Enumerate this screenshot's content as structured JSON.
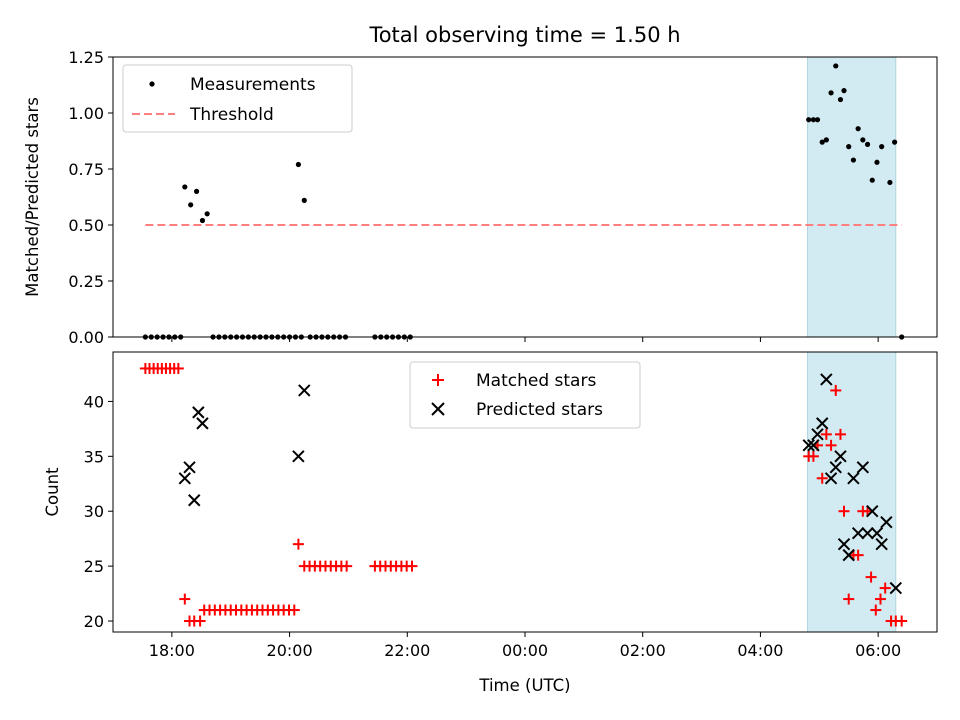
{
  "chart_data": [
    {
      "type": "scatter",
      "title": "Total observing time = 1.50 h",
      "xlabel": "",
      "ylabel": "Matched/Predicted stars",
      "x_unit": "hours since 00:00 UTC",
      "xlim": [
        -7.0,
        7.0
      ],
      "ylim": [
        0.0,
        1.25
      ],
      "yticks": [
        "0.00",
        "0.25",
        "0.50",
        "0.75",
        "1.00",
        "1.25"
      ],
      "xticks": [
        "18:00",
        "20:00",
        "22:00",
        "00:00",
        "02:00",
        "04:00",
        "06:00"
      ],
      "xtick_values": [
        -6,
        -4,
        -2,
        0,
        2,
        4,
        6
      ],
      "highlight_span": [
        4.8,
        6.3
      ],
      "legend_position": "upper left",
      "series": [
        {
          "name": "Measurements",
          "kind": "points",
          "color": "#000000",
          "points": [
            [
              -6.45,
              0
            ],
            [
              -6.35,
              0
            ],
            [
              -6.25,
              0
            ],
            [
              -6.15,
              0
            ],
            [
              -6.05,
              0
            ],
            [
              -5.95,
              0
            ],
            [
              -5.85,
              0
            ],
            [
              -5.78,
              0.67
            ],
            [
              -5.68,
              0.59
            ],
            [
              -5.58,
              0.65
            ],
            [
              -5.48,
              0.52
            ],
            [
              -5.4,
              0.55
            ],
            [
              -5.3,
              0
            ],
            [
              -5.2,
              0
            ],
            [
              -5.1,
              0
            ],
            [
              -5.0,
              0
            ],
            [
              -4.9,
              0
            ],
            [
              -4.8,
              0
            ],
            [
              -4.7,
              0
            ],
            [
              -4.6,
              0
            ],
            [
              -4.5,
              0
            ],
            [
              -4.4,
              0
            ],
            [
              -4.3,
              0
            ],
            [
              -4.2,
              0
            ],
            [
              -4.1,
              0
            ],
            [
              -4.0,
              0
            ],
            [
              -3.9,
              0
            ],
            [
              -3.8,
              0
            ],
            [
              -3.85,
              0.77
            ],
            [
              -3.75,
              0.61
            ],
            [
              -3.65,
              0
            ],
            [
              -3.55,
              0
            ],
            [
              -3.45,
              0
            ],
            [
              -3.35,
              0
            ],
            [
              -3.25,
              0
            ],
            [
              -3.15,
              0
            ],
            [
              -3.05,
              0
            ],
            [
              -2.55,
              0
            ],
            [
              -2.45,
              0
            ],
            [
              -2.35,
              0
            ],
            [
              -2.25,
              0
            ],
            [
              -2.15,
              0
            ],
            [
              -2.05,
              0
            ],
            [
              -1.95,
              0
            ],
            [
              4.82,
              0.97
            ],
            [
              4.9,
              0.97
            ],
            [
              4.97,
              0.97
            ],
            [
              5.05,
              0.87
            ],
            [
              5.12,
              0.88
            ],
            [
              5.2,
              1.09
            ],
            [
              5.28,
              1.21
            ],
            [
              5.36,
              1.06
            ],
            [
              5.42,
              1.1
            ],
            [
              5.5,
              0.85
            ],
            [
              5.58,
              0.79
            ],
            [
              5.66,
              0.93
            ],
            [
              5.74,
              0.88
            ],
            [
              5.82,
              0.86
            ],
            [
              5.9,
              0.7
            ],
            [
              5.98,
              0.78
            ],
            [
              6.06,
              0.85
            ],
            [
              6.2,
              0.69
            ],
            [
              6.28,
              0.87
            ],
            [
              6.4,
              0
            ]
          ]
        },
        {
          "name": "Threshold",
          "kind": "dashed-line",
          "color": "#ff7f7f",
          "x": [
            -6.45,
            6.4
          ],
          "y": [
            0.5,
            0.5
          ]
        }
      ]
    },
    {
      "type": "scatter",
      "title": "",
      "xlabel": "Time (UTC)",
      "ylabel": "Count",
      "x_unit": "hours since 00:00 UTC",
      "xlim": [
        -7.0,
        7.0
      ],
      "ylim": [
        19.0,
        44.5
      ],
      "yticks": [
        "20",
        "25",
        "30",
        "35",
        "40"
      ],
      "xticks": [
        "18:00",
        "20:00",
        "22:00",
        "00:00",
        "02:00",
        "04:00",
        "06:00"
      ],
      "xtick_values": [
        -6,
        -4,
        -2,
        0,
        2,
        4,
        6
      ],
      "highlight_span": [
        4.8,
        6.3
      ],
      "legend_position": "upper center",
      "series": [
        {
          "name": "Matched stars",
          "marker": "plus",
          "color": "#ff0000",
          "points": [
            [
              -6.45,
              43
            ],
            [
              -6.38,
              43
            ],
            [
              -6.31,
              43
            ],
            [
              -6.24,
              43
            ],
            [
              -6.17,
              43
            ],
            [
              -6.1,
              43
            ],
            [
              -6.03,
              43
            ],
            [
              -5.96,
              43
            ],
            [
              -5.89,
              43
            ],
            [
              -5.78,
              22
            ],
            [
              -5.7,
              20
            ],
            [
              -5.62,
              20
            ],
            [
              -5.52,
              20
            ],
            [
              -5.45,
              21
            ],
            [
              -5.36,
              21
            ],
            [
              -5.27,
              21
            ],
            [
              -5.18,
              21
            ],
            [
              -5.09,
              21
            ],
            [
              -5.0,
              21
            ],
            [
              -4.91,
              21
            ],
            [
              -4.82,
              21
            ],
            [
              -4.73,
              21
            ],
            [
              -4.64,
              21
            ],
            [
              -4.55,
              21
            ],
            [
              -4.46,
              21
            ],
            [
              -4.37,
              21
            ],
            [
              -4.28,
              21
            ],
            [
              -4.19,
              21
            ],
            [
              -4.1,
              21
            ],
            [
              -4.01,
              21
            ],
            [
              -3.92,
              21
            ],
            [
              -3.85,
              27
            ],
            [
              -3.75,
              25
            ],
            [
              -3.66,
              25
            ],
            [
              -3.57,
              25
            ],
            [
              -3.48,
              25
            ],
            [
              -3.39,
              25
            ],
            [
              -3.3,
              25
            ],
            [
              -3.21,
              25
            ],
            [
              -3.12,
              25
            ],
            [
              -3.03,
              25
            ],
            [
              -2.55,
              25
            ],
            [
              -2.46,
              25
            ],
            [
              -2.37,
              25
            ],
            [
              -2.28,
              25
            ],
            [
              -2.19,
              25
            ],
            [
              -2.1,
              25
            ],
            [
              -2.01,
              25
            ],
            [
              -1.92,
              25
            ],
            [
              4.82,
              35
            ],
            [
              4.9,
              35
            ],
            [
              4.97,
              36
            ],
            [
              5.05,
              33
            ],
            [
              5.12,
              37
            ],
            [
              5.2,
              36
            ],
            [
              5.28,
              41
            ],
            [
              5.36,
              37
            ],
            [
              5.42,
              30
            ],
            [
              5.5,
              22
            ],
            [
              5.58,
              26
            ],
            [
              5.66,
              26
            ],
            [
              5.74,
              30
            ],
            [
              5.82,
              30
            ],
            [
              5.88,
              24
            ],
            [
              5.96,
              21
            ],
            [
              6.04,
              22
            ],
            [
              6.12,
              23
            ],
            [
              6.22,
              20
            ],
            [
              6.3,
              20
            ],
            [
              6.4,
              20
            ]
          ]
        },
        {
          "name": "Predicted stars",
          "marker": "x",
          "color": "#000000",
          "points": [
            [
              -5.78,
              33
            ],
            [
              -5.7,
              34
            ],
            [
              -5.62,
              31
            ],
            [
              -5.55,
              39
            ],
            [
              -5.48,
              38
            ],
            [
              -3.85,
              35
            ],
            [
              -3.75,
              41
            ],
            [
              4.82,
              36
            ],
            [
              4.9,
              36
            ],
            [
              4.97,
              37
            ],
            [
              5.05,
              38
            ],
            [
              5.12,
              42
            ],
            [
              5.2,
              33
            ],
            [
              5.28,
              34
            ],
            [
              5.36,
              35
            ],
            [
              5.42,
              27
            ],
            [
              5.5,
              26
            ],
            [
              5.58,
              33
            ],
            [
              5.66,
              28
            ],
            [
              5.74,
              34
            ],
            [
              5.82,
              28
            ],
            [
              5.9,
              30
            ],
            [
              5.98,
              28
            ],
            [
              6.06,
              27
            ],
            [
              6.14,
              29
            ],
            [
              6.3,
              23
            ]
          ]
        }
      ]
    }
  ]
}
